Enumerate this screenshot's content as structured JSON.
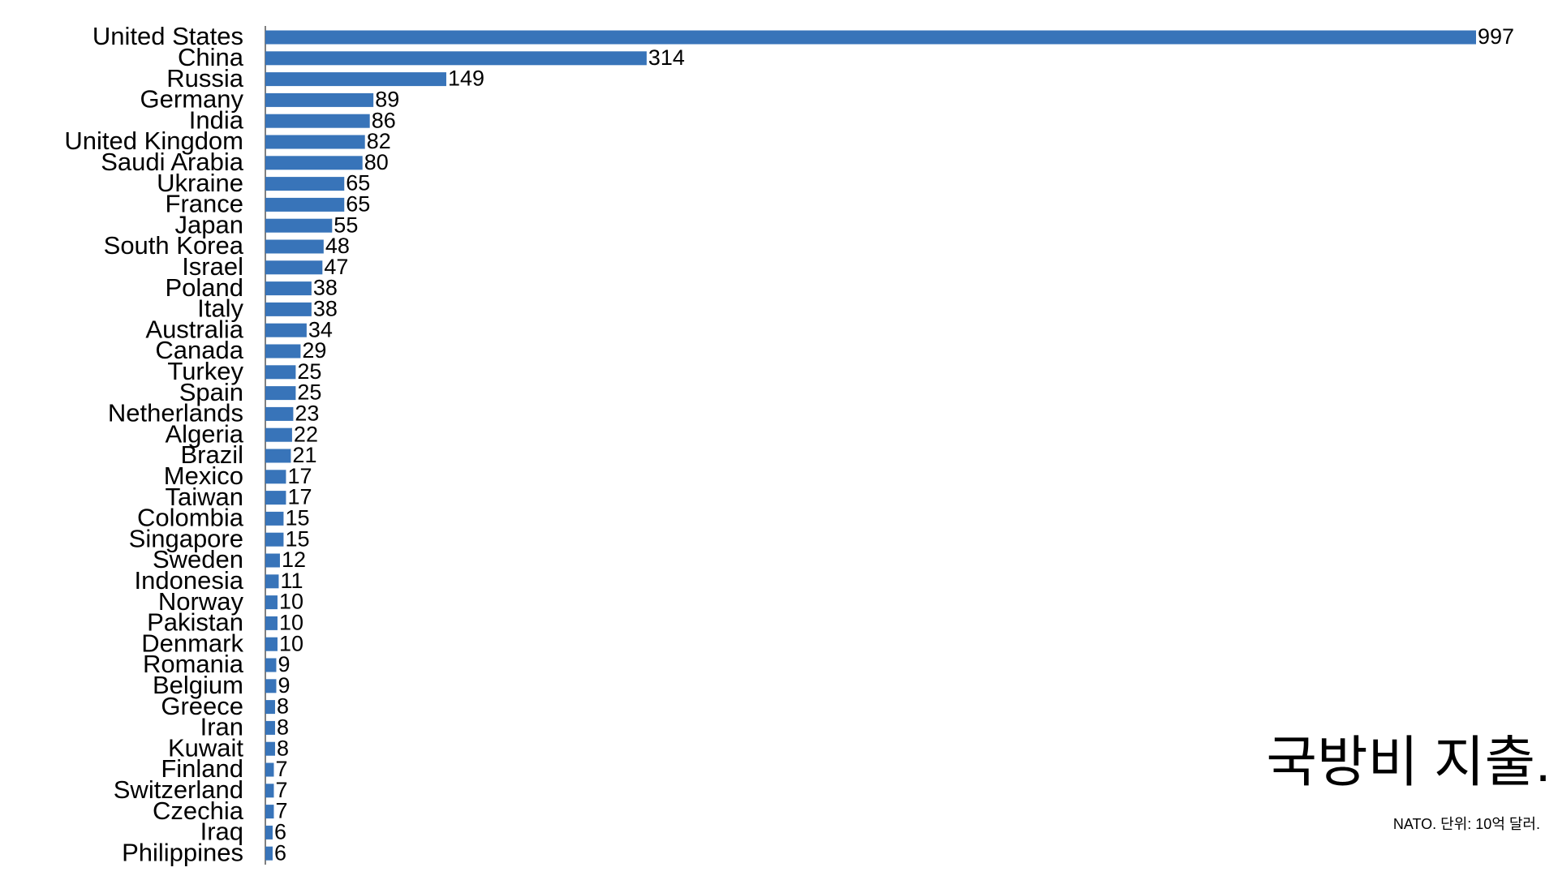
{
  "chart_data": {
    "type": "bar",
    "orientation": "horizontal",
    "title": "국방비 지출.",
    "subtitle": "NATO. 단위: 10억 달러.",
    "color": "#3874b9",
    "categories": [
      "United States",
      "China",
      "Russia",
      "Germany",
      "India",
      "United Kingdom",
      "Saudi Arabia",
      "Ukraine",
      "France",
      "Japan",
      "South Korea",
      "Israel",
      "Poland",
      "Italy",
      "Australia",
      "Canada",
      "Turkey",
      "Spain",
      "Netherlands",
      "Algeria",
      "Brazil",
      "Mexico",
      "Taiwan",
      "Colombia",
      "Singapore",
      "Sweden",
      "Indonesia",
      "Norway",
      "Pakistan",
      "Denmark",
      "Romania",
      "Belgium",
      "Greece",
      "Iran",
      "Kuwait",
      "Finland",
      "Switzerland",
      "Czechia",
      "Iraq",
      "Philippines"
    ],
    "values": [
      997,
      314,
      149,
      89,
      86,
      82,
      80,
      65,
      65,
      55,
      48,
      47,
      38,
      38,
      34,
      29,
      25,
      25,
      23,
      22,
      21,
      17,
      17,
      15,
      15,
      12,
      11,
      10,
      10,
      10,
      9,
      9,
      8,
      8,
      8,
      7,
      7,
      7,
      6,
      6
    ]
  }
}
